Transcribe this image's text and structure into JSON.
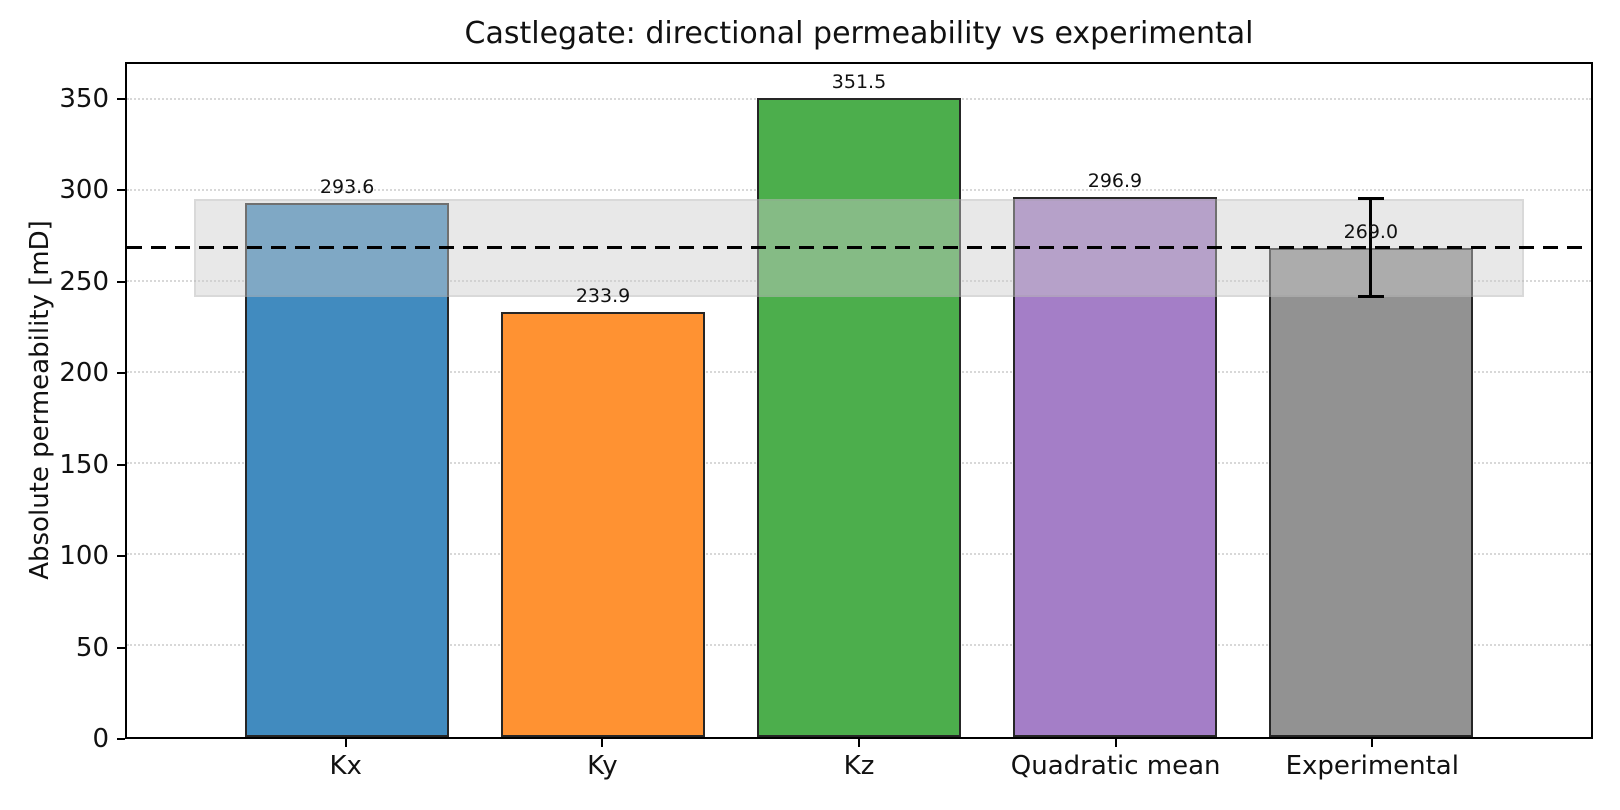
{
  "figure": {
    "title": "Castlegate: directional permeability vs experimental",
    "ylabel": "Absolute permeability [mD]"
  },
  "chart_data": {
    "type": "bar",
    "title": "Castlegate: directional permeability vs experimental",
    "xlabel": "",
    "ylabel": "Absolute permeability [mD]",
    "categories": [
      "Kx",
      "Ky",
      "Kz",
      "Quadratic mean",
      "Experimental"
    ],
    "values": [
      293.6,
      233.9,
      351.5,
      296.9,
      269.0
    ],
    "bar_value_labels": [
      "293.6",
      "233.9",
      "351.5",
      "296.9",
      "269.0"
    ],
    "bar_colors": [
      "#418bbf",
      "#ff9232",
      "#4cae4c",
      "#a47ec7",
      "#929292"
    ],
    "bar_edge_color": "#262626",
    "bar_width_units": 0.8,
    "ylim": [
      0,
      370
    ],
    "xlim": [
      -0.86,
      4.86
    ],
    "yticks": [
      0,
      50,
      100,
      150,
      200,
      250,
      300,
      350
    ],
    "grid": "horizontal-dotted",
    "grid_color": "#d8d8d8",
    "legend": "none",
    "reference_line": {
      "value": 269.0,
      "style": "dashed",
      "color": "#000000"
    },
    "uncertainty_band": {
      "y_from": 242,
      "y_to": 296,
      "x_from": -0.6,
      "x_to": 4.6,
      "color": "rgba(205,205,205,0.45)"
    },
    "error_bar": {
      "category": "Experimental",
      "value": 269.0,
      "plus_minus": 27,
      "color": "#000000"
    }
  }
}
